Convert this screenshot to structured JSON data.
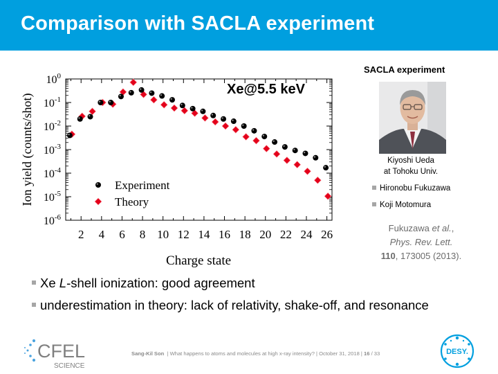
{
  "slide": {
    "title": "Comparison with SACLA experiment",
    "colors": {
      "header": "#009fdf",
      "experiment_marker": "#000000",
      "theory_marker": "#e3001b",
      "footer_text": "#8a8a8a"
    }
  },
  "sacla": {
    "heading": "SACLA experiment",
    "photo_name": "Kiyoshi Ueda",
    "photo_affiliation": "at Tohoku Univ.",
    "names": [
      "Hironobu Fukuzawa",
      "Koji Motomura"
    ]
  },
  "reference": {
    "authors": "Fukuzawa",
    "etal": "et al.",
    "comma": ",",
    "journal": "Phys. Rev. Lett.",
    "volume": "110",
    "pages": ", 173005 (2013)."
  },
  "bullets": {
    "b1_prefix": "Xe ",
    "b1_em": "L",
    "b1_suffix": "-shell ionization: good agreement",
    "b2": "underestimation in theory: lack of relativity, shake-off, and resonance"
  },
  "footer": {
    "author": "Sang-Kil Son",
    "rest": "| What happens to atoms and molecules at high x-ray intensity? | October 31, 2018 | ",
    "page": "16",
    "total": " / 33"
  },
  "logos": {
    "left_main": "CFEL",
    "left_sub": "SCIENCE",
    "right": "DESY."
  },
  "chart_data": {
    "type": "scatter",
    "annotation": "Xe@5.5 keV",
    "xlabel": "Charge state",
    "ylabel": "Ion yield (counts/shot)",
    "xlim": [
      0.5,
      26.5
    ],
    "ylim_log10": [
      -6,
      0
    ],
    "yscale": "log",
    "x_ticks": [
      2,
      4,
      6,
      8,
      10,
      12,
      14,
      16,
      18,
      20,
      22,
      24,
      26
    ],
    "y_tick_exponents": [
      0,
      -1,
      -2,
      -3,
      -4,
      -5,
      -6
    ],
    "legend_position": "bottom-left",
    "series": [
      {
        "name": "Experiment",
        "marker": "circle",
        "color": "#000000",
        "x": [
          1,
          2,
          3,
          4,
          5,
          6,
          7,
          8,
          9,
          10,
          11,
          12,
          13,
          14,
          15,
          16,
          17,
          18,
          19,
          20,
          21,
          22,
          23,
          24,
          25,
          26
        ],
        "y": [
          0.004,
          0.02,
          0.025,
          0.1,
          0.1,
          0.18,
          0.26,
          0.34,
          0.25,
          0.19,
          0.13,
          0.075,
          0.055,
          0.042,
          0.028,
          0.02,
          0.016,
          0.01,
          0.0063,
          0.0036,
          0.0021,
          0.0013,
          0.00092,
          0.00069,
          0.00045,
          0.00017
        ]
      },
      {
        "name": "Theory",
        "marker": "diamond",
        "color": "#e3001b",
        "x": [
          1,
          2,
          3,
          4,
          5,
          6,
          7,
          8,
          9,
          10,
          11,
          12,
          13,
          14,
          15,
          16,
          17,
          18,
          19,
          20,
          21,
          22,
          23,
          24,
          25,
          26
        ],
        "y": [
          0.0045,
          0.026,
          0.042,
          0.1,
          0.085,
          0.28,
          0.72,
          0.22,
          0.13,
          0.08,
          0.058,
          0.045,
          0.035,
          0.022,
          0.015,
          0.01,
          0.007,
          0.0035,
          0.0024,
          0.0011,
          0.00065,
          0.00035,
          0.00023,
          0.00012,
          5e-05,
          1.05e-05
        ]
      }
    ]
  }
}
